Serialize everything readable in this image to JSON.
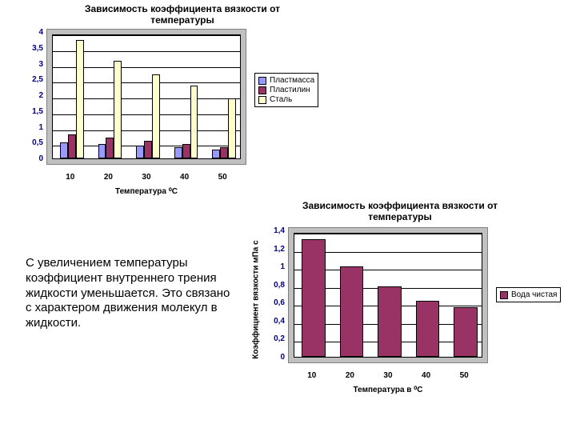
{
  "chart1": {
    "type": "bar",
    "title": "Зависимость коэффициента вязкости от температуры",
    "title_fontsize": 12,
    "xlabel": "Температура ⁰С",
    "xlabel_fontsize": 10,
    "categories": [
      "10",
      "20",
      "30",
      "40",
      "50"
    ],
    "series": [
      {
        "name": "Пластмасса",
        "color": "#9999ff",
        "values": [
          0.5,
          0.45,
          0.4,
          0.35,
          0.28
        ]
      },
      {
        "name": "Пластилин",
        "color": "#993366",
        "values": [
          0.75,
          0.65,
          0.55,
          0.45,
          0.35
        ]
      },
      {
        "name": "Сталь",
        "color": "#ffffcc",
        "values": [
          3.75,
          3.1,
          2.65,
          2.3,
          1.9
        ]
      }
    ],
    "ylim": [
      0,
      4
    ],
    "ytick_step": 0.5,
    "ytick_labels": [
      "0",
      "0,5",
      "1",
      "1,5",
      "2",
      "2,5",
      "3",
      "3,5",
      "4"
    ],
    "tick_fontsize": 10,
    "ytick_color": "#000080",
    "plot_bg": "#c0c0c0",
    "inner_bg": "#ffffff",
    "grid_color": "#000000",
    "bar_gap": 0.0,
    "bar_border_color": "#000000"
  },
  "chart2": {
    "type": "bar",
    "title": "Зависимость коэффициента вязкости от температуры",
    "title_fontsize": 12,
    "xlabel": "Температура в ⁰С",
    "xlabel_fontsize": 10,
    "ylabel": "Коэффициент вязкости  мПа с",
    "ylabel_fontsize": 10,
    "categories": [
      "10",
      "20",
      "30",
      "40",
      "50"
    ],
    "series": [
      {
        "name": "Вода чистая",
        "color": "#993366",
        "values": [
          1.3,
          1.0,
          0.78,
          0.62,
          0.55
        ]
      }
    ],
    "ylim": [
      0,
      1.4
    ],
    "ytick_step": 0.2,
    "ytick_labels": [
      "0",
      "0,2",
      "0,4",
      "0,6",
      "0,8",
      "1",
      "1,2",
      "1,4"
    ],
    "tick_fontsize": 10,
    "ytick_color": "#000080",
    "plot_bg": "#c0c0c0",
    "inner_bg": "#ffffff",
    "grid_color": "#000000",
    "bar_border_color": "#000000"
  },
  "body_text": "С увеличением температуры коэффициент внутреннего трения жидкости уменьшается. Это связано с характером движения молекул в жидкости.",
  "body_fontsize": 15
}
